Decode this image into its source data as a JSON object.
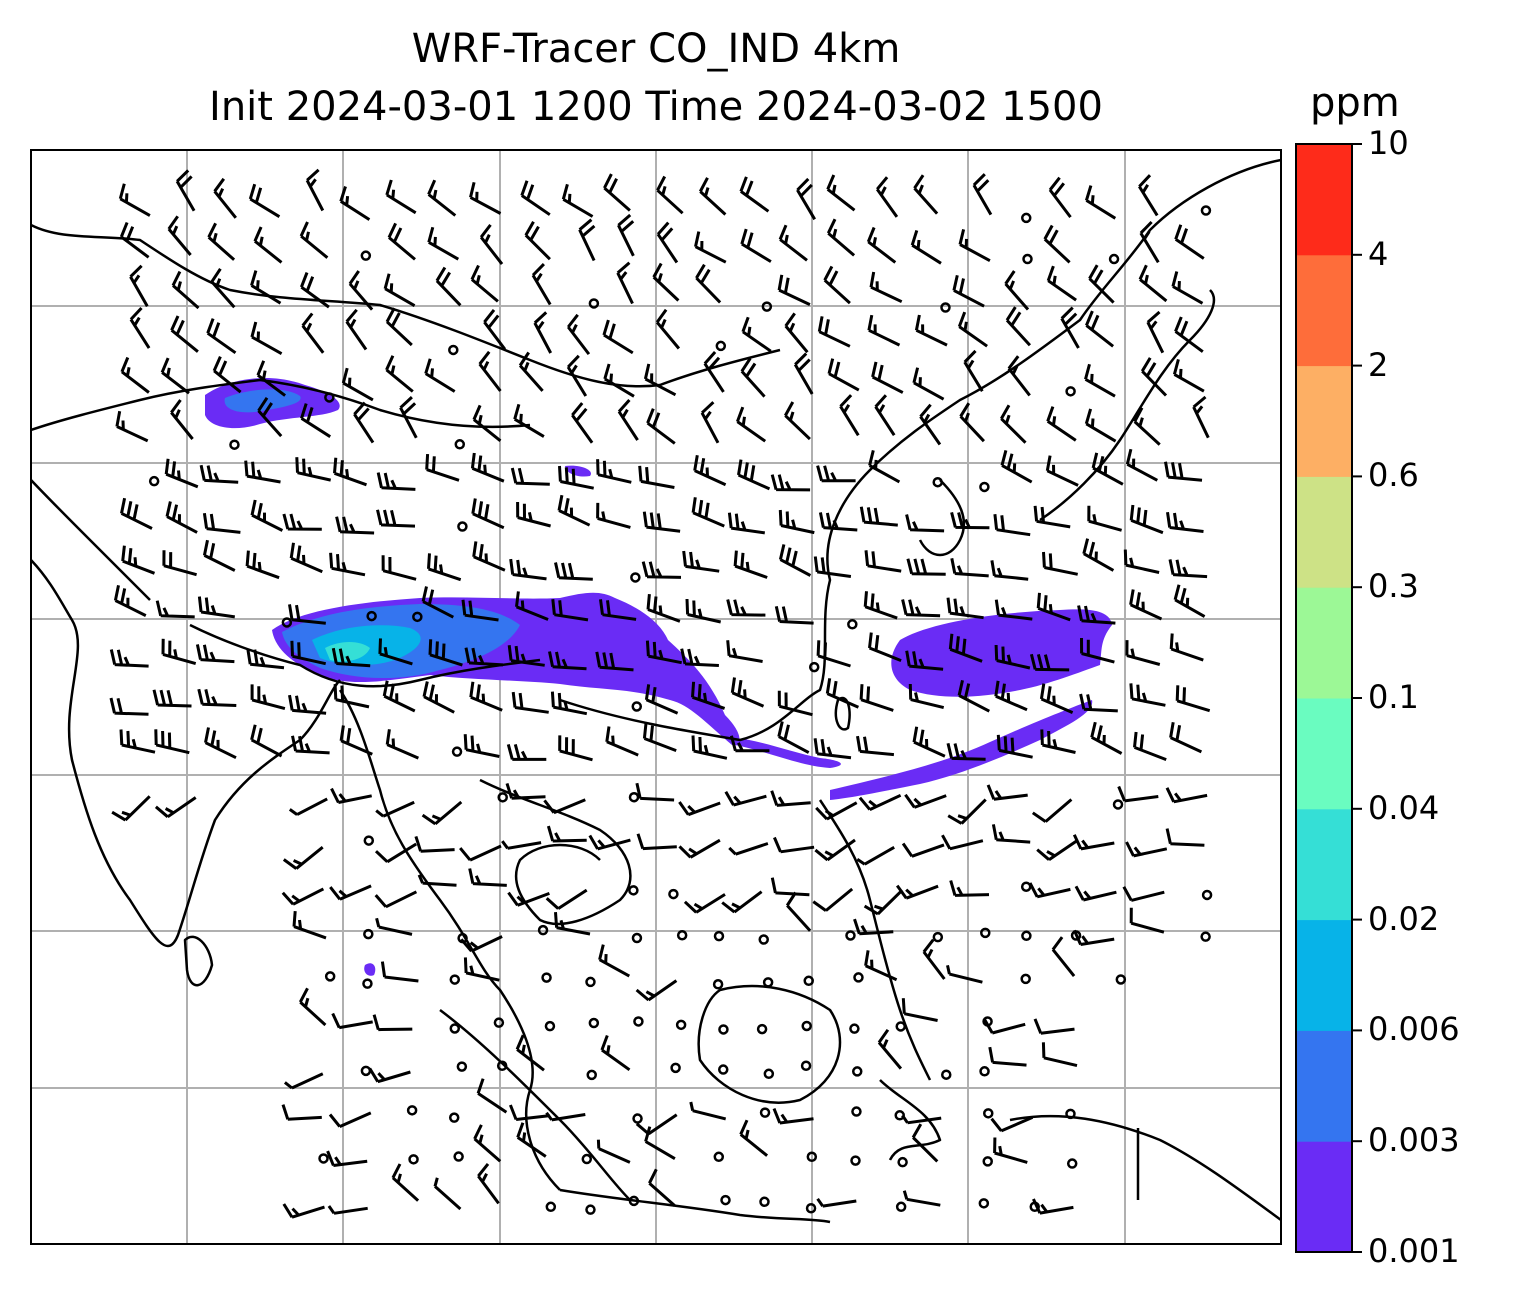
{
  "title": {
    "line1": "WRF-Tracer CO_IND 4km",
    "line2": "Init 2024-03-01 1200 Time 2024-03-02 1500"
  },
  "colorbar": {
    "unit": "ppm",
    "ticks": [
      "0.001",
      "0.003",
      "0.006",
      "0.02",
      "0.04",
      "0.1",
      "0.3",
      "0.6",
      "2",
      "4",
      "10"
    ],
    "colors": [
      "#6a2cf5",
      "#3475f0",
      "#07b3e8",
      "#35dfd6",
      "#6afcc0",
      "#9cf896",
      "#cde286",
      "#fdaf64",
      "#fe6d3a",
      "#fe2b1a"
    ]
  },
  "map": {
    "frame_color": "#000000",
    "grid_color": "#b0b0b0",
    "coast_color": "#000000",
    "barb_color": "#000000"
  }
}
